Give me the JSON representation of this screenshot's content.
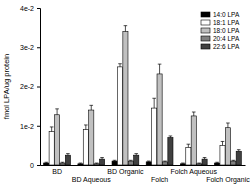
{
  "chart_data": {
    "type": "bar",
    "y_label": "fmol LPA/ug protein",
    "categories": [
      "BD",
      "BD Aqueous",
      "BD Organic",
      "Folch",
      "Folch Aqueous",
      "Folch Organic"
    ],
    "series": [
      {
        "name": "14:0 LPA",
        "color": "#000000",
        "values": [
          0.0005,
          0.0003,
          0.001,
          0.0008,
          0.0003,
          0.0005
        ],
        "errors": [
          0.0002,
          0.0002,
          0.0002,
          0.0002,
          0.0002,
          0.0002
        ]
      },
      {
        "name": "18:1 LPA",
        "color": "#ffffff",
        "values": [
          0.0085,
          0.009,
          0.025,
          0.0145,
          0.0045,
          0.005
        ],
        "errors": [
          0.0012,
          0.0012,
          0.0008,
          0.0025,
          0.0008,
          0.001
        ]
      },
      {
        "name": "18:0 LPA",
        "color": "#c0c0c0",
        "values": [
          0.0128,
          0.014,
          0.034,
          0.0232,
          0.0125,
          0.0095
        ],
        "errors": [
          0.0015,
          0.0012,
          0.0015,
          0.0025,
          0.001,
          0.0012
        ]
      },
      {
        "name": "20:4 LPA",
        "color": "#808080",
        "values": [
          0.0005,
          0.0003,
          0.001,
          0.0008,
          0.0003,
          0.001
        ],
        "errors": [
          0.0002,
          0.0002,
          0.0002,
          0.0002,
          0.0002,
          0.0002
        ]
      },
      {
        "name": "22:6 LPA",
        "color": "#404040",
        "values": [
          0.0025,
          0.0015,
          0.0025,
          0.007,
          0.0015,
          0.0035
        ],
        "errors": [
          0.0004,
          0.0004,
          0.0004,
          0.0004,
          0.0004,
          0.0004
        ]
      }
    ],
    "ylim": [
      0,
      0.04
    ],
    "yticks": [
      0,
      {
        "value": 0.01,
        "label": "1e-2"
      },
      {
        "value": 0.02,
        "label": "2e-2"
      },
      {
        "value": 0.03,
        "label": "3e-2"
      },
      {
        "value": 0.04,
        "label": "4e-2"
      }
    ],
    "legend": "top-right"
  }
}
